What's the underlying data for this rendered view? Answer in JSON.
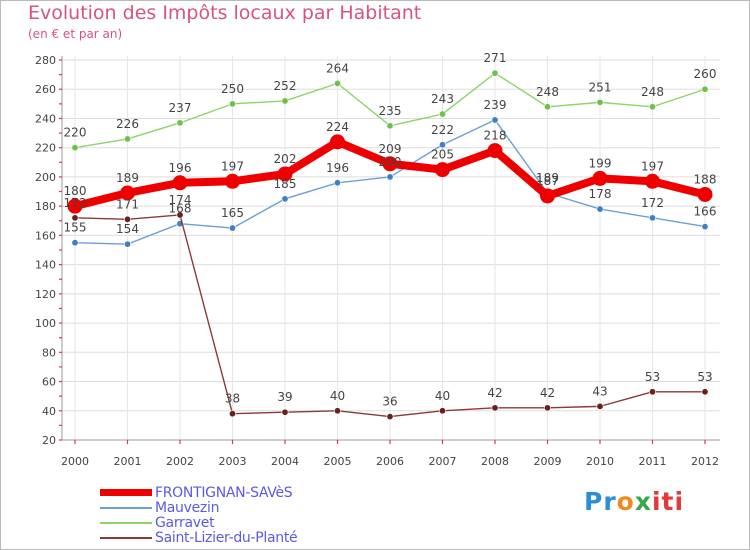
{
  "chart_data": {
    "type": "line",
    "title": "Evolution des Impôts locaux par Habitant",
    "subtitle": "(en € et par an)",
    "categories": [
      "2000",
      "2001",
      "2002",
      "2003",
      "2004",
      "2005",
      "2006",
      "2007",
      "2008",
      "2009",
      "2010",
      "2011",
      "2012"
    ],
    "ylim": [
      20,
      280
    ],
    "yticks": [
      20,
      40,
      60,
      80,
      100,
      120,
      140,
      160,
      180,
      200,
      220,
      240,
      260,
      280
    ],
    "grid": true,
    "series": [
      {
        "name": "Garravet",
        "color": "#8ed36a",
        "dot": "#6fc04a",
        "values": [
          220,
          226,
          237,
          250,
          252,
          264,
          235,
          243,
          271,
          248,
          251,
          248,
          260
        ]
      },
      {
        "name": "Mauvezin",
        "color": "#6a9fd8",
        "dot": "#3f7fc6",
        "values": [
          155,
          154,
          168,
          165,
          185,
          196,
          200,
          222,
          239,
          189,
          178,
          172,
          166
        ]
      },
      {
        "name": "Saint-Lizier-du-Planté",
        "color": "#8a3a3a",
        "dot": "#6b1f1f",
        "values": [
          172,
          171,
          174,
          38,
          39,
          40,
          36,
          40,
          42,
          42,
          43,
          53,
          53
        ]
      },
      {
        "name": "FRONTIGNAN-SAVèS",
        "color": "#ee0000",
        "dot": "#ee0000",
        "values": [
          180,
          189,
          196,
          197,
          202,
          224,
          209,
          205,
          218,
          187,
          199,
          197,
          188
        ]
      }
    ]
  },
  "legend": {
    "items": [
      {
        "label": "FRONTIGNAN-SAVèS",
        "color": "#ee0000"
      },
      {
        "label": "Mauvezin",
        "color": "#6a9fd8"
      },
      {
        "label": "Garravet",
        "color": "#8ed36a"
      },
      {
        "label": "Saint-Lizier-du-Planté",
        "color": "#8a3a3a"
      }
    ]
  },
  "logo": {
    "part1": "Pr",
    "part2": "o",
    "part3": "x",
    "part4": "iti"
  }
}
